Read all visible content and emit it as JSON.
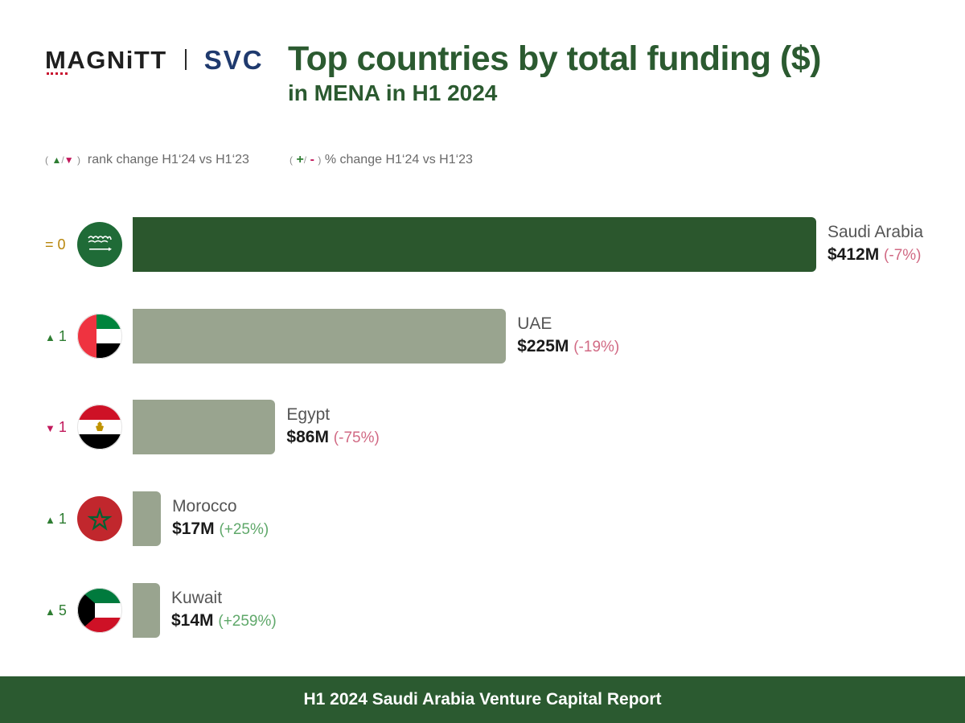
{
  "header": {
    "logo_magnitt": "MAGNiTT",
    "logo_svc": "SVC",
    "title": "Top countries by total funding ($)",
    "subtitle": "in MENA in H1 2024"
  },
  "legend": {
    "rank_label": "rank change H1‘24 vs H1‘23",
    "pct_label": "% change H1‘24 vs H1‘23",
    "up_symbol": "▲",
    "down_symbol": "▼",
    "plus_symbol": "+",
    "minus_symbol": "-"
  },
  "colors": {
    "leader_bar": "#2b572d",
    "other_bar": "#99a48f",
    "accent_green": "#2b5a30",
    "negative": "#d16a84",
    "positive": "#5fa86a"
  },
  "chart_data": {
    "type": "bar",
    "orientation": "horizontal",
    "title": "Top countries by total funding ($)",
    "subtitle": "in MENA in H1 2024",
    "unit": "$M",
    "xlim": [
      0,
      412
    ],
    "categories": [
      "Saudi Arabia",
      "UAE",
      "Egypt",
      "Morocco",
      "Kuwait"
    ],
    "values": [
      412,
      225,
      86,
      17,
      14
    ],
    "value_labels": [
      "$412M",
      "$225M",
      "$86M",
      "$17M",
      "$14M"
    ],
    "pct_change": [
      "(-7%)",
      "(-19%)",
      "(-75%)",
      "(+25%)",
      "(+259%)"
    ],
    "pct_direction": [
      "neg",
      "neg",
      "neg",
      "pos",
      "pos"
    ],
    "rank_change": [
      "= 0",
      "1",
      "1",
      "1",
      "5"
    ],
    "rank_direction": [
      "same",
      "up",
      "down",
      "up",
      "up"
    ],
    "flags": [
      "saudi-arabia-flag",
      "uae-flag",
      "egypt-flag",
      "morocco-flag",
      "kuwait-flag"
    ]
  },
  "footer": {
    "text": "H1 2024 Saudi Arabia Venture Capital Report"
  }
}
